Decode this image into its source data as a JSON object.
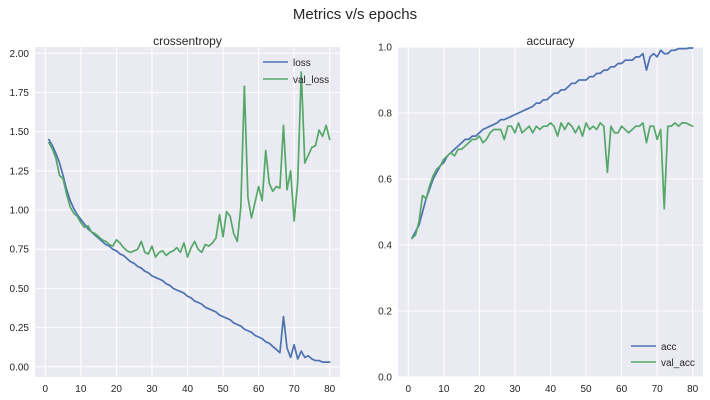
{
  "figure": {
    "suptitle": "Metrics v/s epochs"
  },
  "chart_data": [
    {
      "type": "line",
      "title": "crossentropy",
      "xlabel": "",
      "ylabel": "",
      "xlim": [
        -2.9,
        82.9
      ],
      "ylim": [
        -0.065,
        2.04
      ],
      "xticks": [
        0,
        10,
        20,
        30,
        40,
        50,
        60,
        70,
        80
      ],
      "xtick_labels": [
        "0",
        "10",
        "20",
        "30",
        "40",
        "50",
        "60",
        "70",
        "80"
      ],
      "yticks": [
        0,
        0.25,
        0.5,
        0.75,
        1.0,
        1.25,
        1.5,
        1.75,
        2.0
      ],
      "ytick_labels": [
        "0.00",
        "0.25",
        "0.50",
        "0.75",
        "1.00",
        "1.25",
        "1.50",
        "1.75",
        "2.00"
      ],
      "grid": true,
      "legend": "top-right",
      "series": [
        {
          "name": "loss",
          "color": "#4c72b0",
          "values": [
            1.45,
            1.41,
            1.36,
            1.3,
            1.22,
            1.13,
            1.06,
            1.01,
            0.97,
            0.94,
            0.91,
            0.88,
            0.86,
            0.84,
            0.82,
            0.8,
            0.78,
            0.77,
            0.75,
            0.74,
            0.72,
            0.71,
            0.69,
            0.67,
            0.66,
            0.64,
            0.63,
            0.61,
            0.6,
            0.58,
            0.57,
            0.56,
            0.55,
            0.53,
            0.52,
            0.5,
            0.49,
            0.48,
            0.47,
            0.45,
            0.44,
            0.42,
            0.41,
            0.4,
            0.38,
            0.37,
            0.36,
            0.35,
            0.33,
            0.32,
            0.31,
            0.3,
            0.28,
            0.27,
            0.26,
            0.24,
            0.23,
            0.22,
            0.2,
            0.19,
            0.18,
            0.16,
            0.15,
            0.13,
            0.11,
            0.09,
            0.32,
            0.12,
            0.06,
            0.14,
            0.05,
            0.1,
            0.06,
            0.07,
            0.05,
            0.04,
            0.04,
            0.03,
            0.03,
            0.03
          ]
        },
        {
          "name": "val_loss",
          "color": "#55a868",
          "values": [
            1.43,
            1.39,
            1.33,
            1.22,
            1.2,
            1.1,
            1.02,
            0.98,
            0.96,
            0.92,
            0.89,
            0.9,
            0.86,
            0.85,
            0.83,
            0.81,
            0.8,
            0.78,
            0.77,
            0.81,
            0.79,
            0.76,
            0.74,
            0.73,
            0.74,
            0.75,
            0.8,
            0.73,
            0.72,
            0.77,
            0.7,
            0.73,
            0.74,
            0.71,
            0.73,
            0.74,
            0.76,
            0.73,
            0.79,
            0.7,
            0.76,
            0.8,
            0.75,
            0.73,
            0.78,
            0.77,
            0.79,
            0.82,
            0.97,
            0.83,
            0.99,
            0.96,
            0.85,
            0.8,
            1.02,
            1.79,
            1.08,
            0.95,
            1.05,
            1.15,
            1.06,
            1.38,
            1.17,
            1.12,
            1.15,
            1.14,
            1.54,
            1.13,
            1.25,
            0.93,
            1.18,
            1.88,
            1.3,
            1.35,
            1.4,
            1.41,
            1.51,
            1.47,
            1.54,
            1.45
          ]
        }
      ]
    },
    {
      "type": "line",
      "title": "accuracy",
      "xlabel": "",
      "ylabel": "",
      "xlim": [
        -2.9,
        82.9
      ],
      "ylim": [
        0,
        1.0
      ],
      "xticks": [
        0,
        10,
        20,
        30,
        40,
        50,
        60,
        70,
        80
      ],
      "xtick_labels": [
        "0",
        "10",
        "20",
        "30",
        "40",
        "50",
        "60",
        "70",
        "80"
      ],
      "yticks": [
        0,
        0.2,
        0.4,
        0.6,
        0.8,
        1.0
      ],
      "ytick_labels": [
        "0.0",
        "0.2",
        "0.4",
        "0.6",
        "0.8",
        "1.0"
      ],
      "grid": true,
      "legend": "bottom-right",
      "series": [
        {
          "name": "acc",
          "color": "#4c72b0",
          "values": [
            0.42,
            0.44,
            0.46,
            0.5,
            0.54,
            0.57,
            0.6,
            0.62,
            0.64,
            0.65,
            0.67,
            0.68,
            0.69,
            0.7,
            0.71,
            0.72,
            0.72,
            0.73,
            0.73,
            0.74,
            0.75,
            0.755,
            0.76,
            0.765,
            0.77,
            0.78,
            0.78,
            0.785,
            0.79,
            0.795,
            0.8,
            0.805,
            0.81,
            0.815,
            0.82,
            0.83,
            0.83,
            0.84,
            0.84,
            0.85,
            0.86,
            0.86,
            0.87,
            0.87,
            0.88,
            0.89,
            0.89,
            0.9,
            0.9,
            0.9,
            0.91,
            0.91,
            0.92,
            0.92,
            0.93,
            0.93,
            0.94,
            0.94,
            0.95,
            0.95,
            0.96,
            0.96,
            0.96,
            0.97,
            0.97,
            0.98,
            0.93,
            0.97,
            0.98,
            0.97,
            0.99,
            0.98,
            0.98,
            0.99,
            0.99,
            0.995,
            0.995,
            0.995,
            0.997,
            0.997
          ]
        },
        {
          "name": "val_acc",
          "color": "#55a868",
          "values": [
            0.42,
            0.43,
            0.47,
            0.55,
            0.54,
            0.58,
            0.61,
            0.63,
            0.64,
            0.66,
            0.67,
            0.68,
            0.67,
            0.69,
            0.69,
            0.7,
            0.71,
            0.72,
            0.72,
            0.73,
            0.71,
            0.72,
            0.74,
            0.75,
            0.75,
            0.75,
            0.72,
            0.76,
            0.76,
            0.74,
            0.77,
            0.74,
            0.75,
            0.76,
            0.74,
            0.76,
            0.75,
            0.76,
            0.76,
            0.77,
            0.76,
            0.73,
            0.77,
            0.75,
            0.77,
            0.76,
            0.74,
            0.76,
            0.73,
            0.77,
            0.75,
            0.76,
            0.75,
            0.77,
            0.76,
            0.62,
            0.76,
            0.74,
            0.74,
            0.76,
            0.75,
            0.74,
            0.75,
            0.76,
            0.76,
            0.77,
            0.71,
            0.76,
            0.76,
            0.72,
            0.75,
            0.51,
            0.76,
            0.76,
            0.77,
            0.76,
            0.77,
            0.77,
            0.765,
            0.76
          ]
        }
      ]
    }
  ]
}
